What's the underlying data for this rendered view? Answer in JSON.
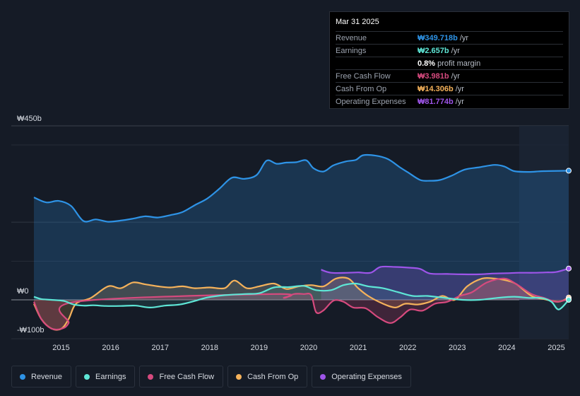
{
  "chart_data": {
    "type": "line",
    "title": "",
    "y_axis": {
      "unit": "₩b",
      "top_label": "₩450b",
      "zero_label": "₩0",
      "bottom_label": "-₩100b",
      "ylim": [
        -100,
        450
      ]
    },
    "x_axis": {
      "ticks": [
        "2015",
        "2016",
        "2017",
        "2018",
        "2019",
        "2020",
        "2021",
        "2022",
        "2023",
        "2024",
        "2025"
      ],
      "xlim": [
        2014.45,
        2025.25
      ]
    },
    "forecast_start": 2024.25,
    "series": [
      {
        "name": "Revenue",
        "color": "#2e93e6",
        "points": [
          [
            2014.45,
            265
          ],
          [
            2014.7,
            252
          ],
          [
            2014.95,
            256
          ],
          [
            2015.2,
            243
          ],
          [
            2015.45,
            204
          ],
          [
            2015.7,
            208
          ],
          [
            2015.95,
            202
          ],
          [
            2016.2,
            205
          ],
          [
            2016.45,
            210
          ],
          [
            2016.7,
            216
          ],
          [
            2016.95,
            213
          ],
          [
            2017.2,
            219
          ],
          [
            2017.45,
            227
          ],
          [
            2017.7,
            245
          ],
          [
            2017.95,
            262
          ],
          [
            2018.2,
            288
          ],
          [
            2018.45,
            316
          ],
          [
            2018.7,
            313
          ],
          [
            2018.95,
            323
          ],
          [
            2019.15,
            360
          ],
          [
            2019.35,
            352
          ],
          [
            2019.55,
            355
          ],
          [
            2019.75,
            356
          ],
          [
            2019.95,
            361
          ],
          [
            2020.1,
            340
          ],
          [
            2020.3,
            332
          ],
          [
            2020.5,
            348
          ],
          [
            2020.75,
            358
          ],
          [
            2020.95,
            362
          ],
          [
            2021.1,
            374
          ],
          [
            2021.35,
            373
          ],
          [
            2021.6,
            364
          ],
          [
            2021.85,
            342
          ],
          [
            2022.0,
            330
          ],
          [
            2022.25,
            310
          ],
          [
            2022.45,
            308
          ],
          [
            2022.65,
            310
          ],
          [
            2022.9,
            322
          ],
          [
            2023.15,
            337
          ],
          [
            2023.45,
            343
          ],
          [
            2023.75,
            349
          ],
          [
            2023.95,
            345
          ],
          [
            2024.15,
            333
          ],
          [
            2024.45,
            331
          ],
          [
            2024.75,
            333
          ],
          [
            2025.25,
            334
          ]
        ]
      },
      {
        "name": "Earnings",
        "color": "#5ee6d6",
        "points": [
          [
            2014.45,
            8
          ],
          [
            2014.6,
            2
          ],
          [
            2014.8,
            0
          ],
          [
            2015.05,
            -3
          ],
          [
            2015.25,
            -12
          ],
          [
            2015.45,
            -15
          ],
          [
            2015.65,
            -14
          ],
          [
            2015.9,
            -16
          ],
          [
            2016.2,
            -16
          ],
          [
            2016.5,
            -15
          ],
          [
            2016.8,
            -20
          ],
          [
            2017.1,
            -15
          ],
          [
            2017.4,
            -12
          ],
          [
            2017.7,
            -3
          ],
          [
            2017.95,
            6
          ],
          [
            2018.3,
            12
          ],
          [
            2018.7,
            15
          ],
          [
            2019.0,
            17
          ],
          [
            2019.3,
            32
          ],
          [
            2019.6,
            33
          ],
          [
            2019.9,
            36
          ],
          [
            2020.15,
            25
          ],
          [
            2020.45,
            25
          ],
          [
            2020.7,
            38
          ],
          [
            2020.95,
            42
          ],
          [
            2021.2,
            35
          ],
          [
            2021.5,
            30
          ],
          [
            2021.8,
            20
          ],
          [
            2022.1,
            10
          ],
          [
            2022.4,
            10
          ],
          [
            2022.75,
            5
          ],
          [
            2023.1,
            0
          ],
          [
            2023.45,
            0
          ],
          [
            2023.8,
            5
          ],
          [
            2024.15,
            8
          ],
          [
            2024.45,
            5
          ],
          [
            2024.7,
            5
          ],
          [
            2024.9,
            -5
          ],
          [
            2025.05,
            -25
          ],
          [
            2025.25,
            0
          ]
        ]
      },
      {
        "name": "Free Cash Flow",
        "color": "#d64a7e",
        "points": [
          [
            2014.45,
            -5
          ],
          [
            2014.6,
            -50
          ],
          [
            2014.8,
            -74
          ],
          [
            2015.0,
            -75
          ],
          [
            2015.15,
            -60
          ],
          [
            2015.3,
            -5
          ],
          [
            2019.3,
            15
          ],
          [
            2019.5,
            5
          ],
          [
            2019.7,
            15
          ],
          [
            2019.9,
            15
          ],
          [
            2020.05,
            12
          ],
          [
            2020.15,
            -32
          ],
          [
            2020.3,
            -27
          ],
          [
            2020.5,
            -2
          ],
          [
            2020.7,
            -5
          ],
          [
            2020.9,
            -20
          ],
          [
            2021.15,
            -22
          ],
          [
            2021.4,
            -45
          ],
          [
            2021.65,
            -60
          ],
          [
            2021.85,
            -45
          ],
          [
            2022.05,
            -25
          ],
          [
            2022.3,
            -28
          ],
          [
            2022.55,
            -10
          ],
          [
            2022.8,
            -5
          ],
          [
            2023.05,
            10
          ],
          [
            2023.3,
            20
          ],
          [
            2023.6,
            45
          ],
          [
            2023.95,
            55
          ],
          [
            2024.2,
            40
          ],
          [
            2024.5,
            15
          ],
          [
            2024.75,
            5
          ],
          [
            2025.0,
            -5
          ],
          [
            2025.25,
            2
          ]
        ]
      },
      {
        "name": "Cash From Op",
        "color": "#f5b25b",
        "points": [
          [
            2014.45,
            -10
          ],
          [
            2014.6,
            -50
          ],
          [
            2014.8,
            -74
          ],
          [
            2015.0,
            -75
          ],
          [
            2015.15,
            -50
          ],
          [
            2015.3,
            -10
          ],
          [
            2015.6,
            5
          ],
          [
            2015.95,
            35
          ],
          [
            2016.2,
            30
          ],
          [
            2016.45,
            45
          ],
          [
            2016.7,
            40
          ],
          [
            2016.95,
            35
          ],
          [
            2017.2,
            32
          ],
          [
            2017.45,
            35
          ],
          [
            2017.7,
            30
          ],
          [
            2018.0,
            32
          ],
          [
            2018.3,
            30
          ],
          [
            2018.5,
            50
          ],
          [
            2018.75,
            30
          ],
          [
            2019.0,
            35
          ],
          [
            2019.3,
            42
          ],
          [
            2019.55,
            28
          ],
          [
            2019.8,
            35
          ],
          [
            2020.05,
            38
          ],
          [
            2020.3,
            35
          ],
          [
            2020.55,
            55
          ],
          [
            2020.8,
            55
          ],
          [
            2021.0,
            30
          ],
          [
            2021.2,
            10
          ],
          [
            2021.5,
            -10
          ],
          [
            2021.75,
            -20
          ],
          [
            2021.95,
            -10
          ],
          [
            2022.2,
            -12
          ],
          [
            2022.45,
            -5
          ],
          [
            2022.7,
            10
          ],
          [
            2022.95,
            0
          ],
          [
            2023.2,
            35
          ],
          [
            2023.5,
            55
          ],
          [
            2023.75,
            55
          ],
          [
            2024.0,
            50
          ],
          [
            2024.2,
            40
          ],
          [
            2024.5,
            10
          ],
          [
            2024.75,
            2
          ],
          [
            2025.05,
            -5
          ],
          [
            2025.25,
            6
          ]
        ]
      },
      {
        "name": "Operating Expenses",
        "color": "#9e55e9",
        "points": [
          [
            2020.25,
            78
          ],
          [
            2020.45,
            70
          ],
          [
            2020.8,
            70
          ],
          [
            2021.0,
            71
          ],
          [
            2021.25,
            70
          ],
          [
            2021.45,
            85
          ],
          [
            2021.75,
            85
          ],
          [
            2022.05,
            83
          ],
          [
            2022.25,
            80
          ],
          [
            2022.45,
            68
          ],
          [
            2022.8,
            67
          ],
          [
            2023.1,
            66
          ],
          [
            2023.45,
            66
          ],
          [
            2023.7,
            68
          ],
          [
            2024.0,
            69
          ],
          [
            2024.25,
            70
          ],
          [
            2024.55,
            70
          ],
          [
            2024.8,
            71
          ],
          [
            2025.0,
            72
          ],
          [
            2025.25,
            81
          ]
        ]
      }
    ],
    "tooltip": {
      "date": "Mar 31 2025",
      "rows": [
        {
          "label": "Revenue",
          "value": "₩349.718b",
          "unit": "/yr",
          "color": "#2e93e6"
        },
        {
          "label": "Earnings",
          "value": "₩2.657b",
          "unit": "/yr",
          "color": "#5ee6d6"
        },
        {
          "label": "",
          "value": "0.8%",
          "unit": "profit margin",
          "color": "#ffffff"
        },
        {
          "label": "Free Cash Flow",
          "value": "₩3.981b",
          "unit": "/yr",
          "color": "#d64a7e"
        },
        {
          "label": "Cash From Op",
          "value": "₩14.306b",
          "unit": "/yr",
          "color": "#f5b25b"
        },
        {
          "label": "Operating Expenses",
          "value": "₩81.774b",
          "unit": "/yr",
          "color": "#9e55e9"
        }
      ]
    },
    "legend": [
      {
        "label": "Revenue",
        "color": "#2e93e6"
      },
      {
        "label": "Earnings",
        "color": "#5ee6d6"
      },
      {
        "label": "Free Cash Flow",
        "color": "#d64a7e"
      },
      {
        "label": "Cash From Op",
        "color": "#f5b25b"
      },
      {
        "label": "Operating Expenses",
        "color": "#9e55e9"
      }
    ]
  }
}
